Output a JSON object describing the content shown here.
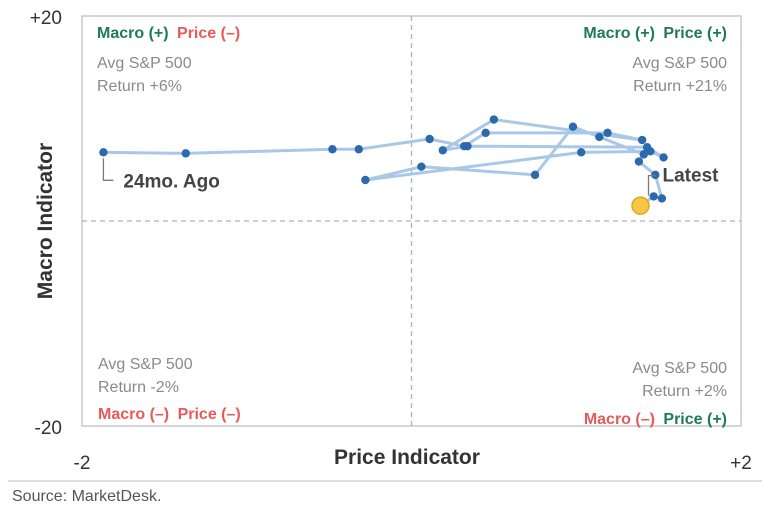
{
  "chart_data": {
    "type": "scatter",
    "title": "",
    "xlabel": "Price Indicator",
    "ylabel": "Macro Indicator",
    "xlim": [
      -2,
      2
    ],
    "ylim": [
      -20,
      20
    ],
    "x_tick_labels": [
      "-2",
      "+2"
    ],
    "y_tick_labels": [
      "+20",
      "-20"
    ],
    "reference_lines": {
      "x": 0,
      "y": 0,
      "style": "dashed"
    },
    "grid": false,
    "connected": true,
    "quadrants": {
      "top_left": {
        "macro": "Macro (+)",
        "price": "Price (–)",
        "stat_line1": "Avg S&P 500",
        "stat_line2": "Return +6%"
      },
      "top_right": {
        "macro": "Macro (+)",
        "price": "Price (+)",
        "stat_line1": "Avg S&P 500",
        "stat_line2": "Return +21%"
      },
      "bottom_left": {
        "macro": "Macro (–)",
        "price": "Price (–)",
        "stat_line1": "Avg S&P 500",
        "stat_line2": "Return -2%"
      },
      "bottom_right": {
        "macro": "Macro (–)",
        "price": "Price (+)",
        "stat_line1": "Avg S&P 500",
        "stat_line2": "Return +2%"
      }
    },
    "annotations": {
      "latest": "Latest",
      "start": "24mo. Ago"
    },
    "series": [
      {
        "points": [
          [
            1.39,
            1.5
          ],
          [
            1.47,
            2.4
          ],
          [
            1.52,
            2.2
          ],
          [
            1.48,
            4.5
          ],
          [
            1.38,
            5.8
          ],
          [
            1.41,
            6.5
          ],
          [
            1.14,
            8.2
          ],
          [
            0.98,
            9.2
          ],
          [
            0.75,
            4.5
          ],
          [
            0.06,
            5.3
          ],
          [
            -0.28,
            4.0
          ],
          [
            1.03,
            6.7
          ],
          [
            1.45,
            6.8
          ],
          [
            1.53,
            6.2
          ],
          [
            1.43,
            7.2
          ],
          [
            0.34,
            7.3
          ],
          [
            0.19,
            6.9
          ],
          [
            0.5,
            9.9
          ],
          [
            1.4,
            7.9
          ],
          [
            1.19,
            8.6
          ],
          [
            0.45,
            8.6
          ],
          [
            0.32,
            7.3
          ],
          [
            0.11,
            8.0
          ],
          [
            -0.32,
            7.0
          ],
          [
            -0.48,
            7.0
          ],
          [
            -1.37,
            6.6
          ],
          [
            -1.87,
            6.7
          ]
        ]
      }
    ],
    "colors": {
      "line": "#a9c8e8",
      "marker": "#2c6aad",
      "latest_fill": "#f6c744",
      "latest_stroke": "#e0a91a",
      "positive": "#1f7a5a",
      "negative": "#e85a5a",
      "frame": "#c8c8c8",
      "crosshair": "#b0b0b0",
      "quadrant_stat": "#8a8a8a"
    }
  },
  "footer": {
    "source": "Source: MarketDesk."
  }
}
